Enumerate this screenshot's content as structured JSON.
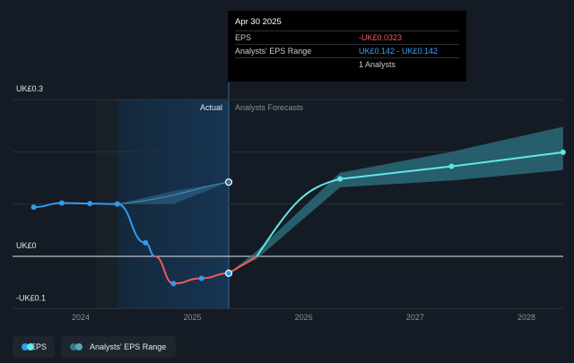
{
  "chart_data": {
    "type": "line",
    "y_axis_labels": [
      "UK£0.3",
      "UK£0",
      "-UK£0.1"
    ],
    "x_ticks": [
      "2024",
      "2025",
      "2026",
      "2027",
      "2028"
    ],
    "region_labels": {
      "actual": "Actual",
      "forecast": "Analysts Forecasts"
    },
    "series": [
      {
        "name": "EPS",
        "color": "#2f9cf0",
        "negative_color": "#ef5a5a",
        "points": [
          {
            "x": "2023-07-31",
            "y": 0.094
          },
          {
            "x": "2023-10-31",
            "y": 0.102
          },
          {
            "x": "2024-01-31",
            "y": 0.101
          },
          {
            "x": "2024-04-30",
            "y": 0.1
          },
          {
            "x": "2024-07-31",
            "y": 0.026
          },
          {
            "x": "2024-10-31",
            "y": -0.052
          },
          {
            "x": "2025-01-31",
            "y": -0.042
          },
          {
            "x": "2025-04-30",
            "y": -0.0323
          }
        ]
      },
      {
        "name": "EPS Forecast",
        "color": "#5fe8ea",
        "points": [
          {
            "x": "2025-04-30",
            "y": -0.0323
          },
          {
            "x": "2025-07-31",
            "y": 0.0
          },
          {
            "x": "2026-04-30",
            "y": 0.148
          },
          {
            "x": "2027-04-30",
            "y": 0.172
          },
          {
            "x": "2028-04-30",
            "y": 0.199
          }
        ]
      },
      {
        "name": "Analysts' EPS Range",
        "color": "#2f7a8a",
        "range": [
          {
            "x": "2024-04-30",
            "low": 0.1,
            "high": 0.1
          },
          {
            "x": "2025-04-30",
            "low": 0.142,
            "high": 0.142
          }
        ],
        "forecast_range": [
          {
            "x": "2025-04-30",
            "low": -0.0323,
            "high": -0.0323
          },
          {
            "x": "2025-07-31",
            "low": -0.005,
            "high": 0.01
          },
          {
            "x": "2026-04-30",
            "low": 0.132,
            "high": 0.16
          },
          {
            "x": "2027-04-30",
            "low": 0.145,
            "high": 0.2
          },
          {
            "x": "2028-04-30",
            "low": 0.165,
            "high": 0.248
          }
        ]
      }
    ]
  },
  "tooltip": {
    "date": "Apr 30 2025",
    "rows": [
      {
        "label": "EPS",
        "value": "-UK£0.0323",
        "tone": "red"
      },
      {
        "label": "Analysts' EPS Range",
        "value": "UK£0.142 - UK£0.142",
        "tone": "blue"
      },
      {
        "label": "",
        "value": "1 Analysts",
        "tone": "plain"
      }
    ]
  },
  "legend": [
    {
      "label": "EPS",
      "colors": [
        "#2f9cf0",
        "#5fe8ea"
      ]
    },
    {
      "label": "Analysts' EPS Range",
      "colors": [
        "#2f7a8a",
        "#5aa8b5"
      ]
    }
  ]
}
